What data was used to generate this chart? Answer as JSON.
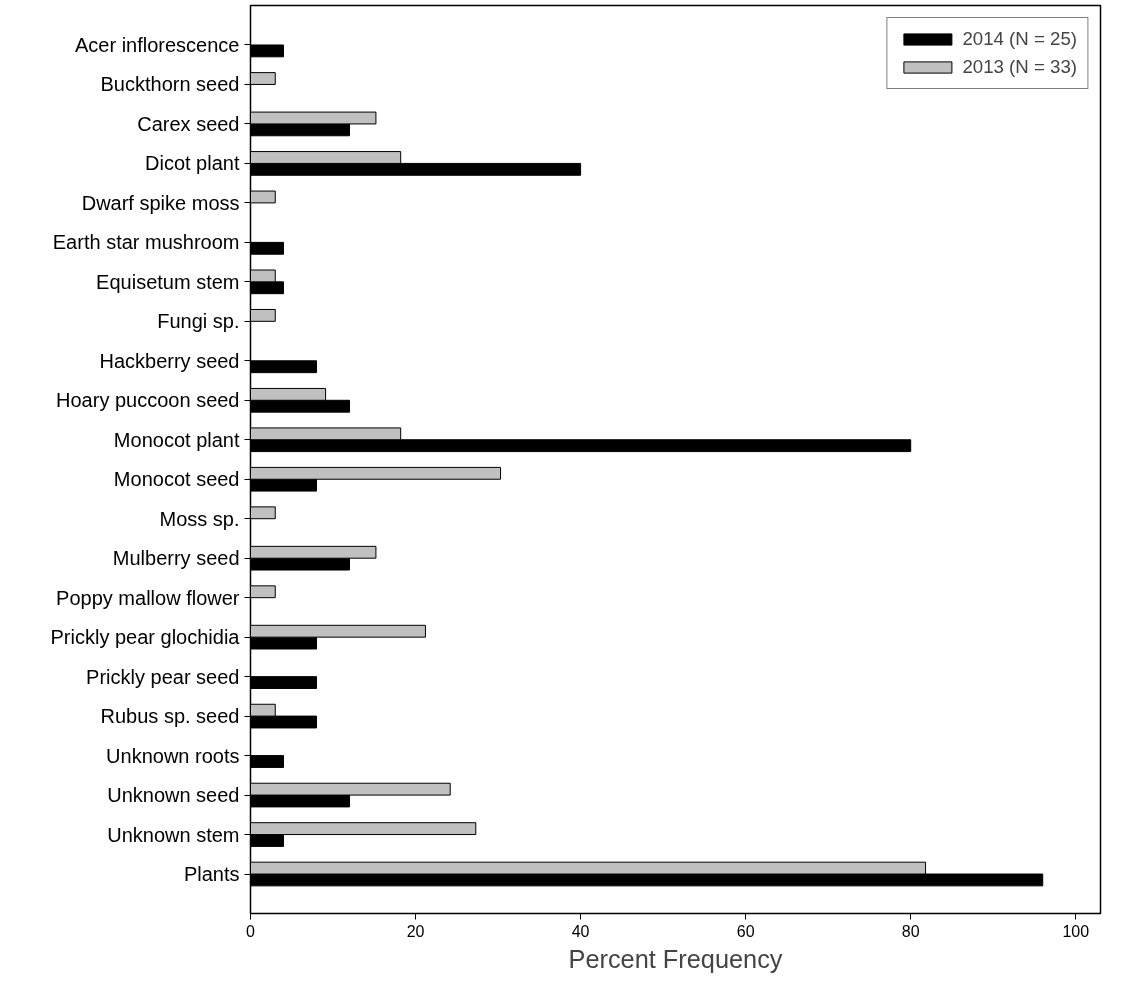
{
  "chart_data": {
    "type": "bar",
    "orientation": "horizontal",
    "xlabel": "Percent Frequency",
    "categories": [
      "Acer inflorescence",
      "Buckthorn seed",
      "Carex seed",
      "Dicot plant",
      "Dwarf spike moss",
      "Earth star mushroom",
      "Equisetum stem",
      "Fungi sp.",
      "Hackberry seed",
      "Hoary puccoon seed",
      "Monocot plant",
      "Monocot seed",
      "Moss sp.",
      "Mulberry seed",
      "Poppy mallow flower",
      "Prickly pear glochidia",
      "Prickly pear seed",
      "Rubus sp. seed",
      "Unknown roots",
      "Unknown seed",
      "Unknown stem",
      "Plants"
    ],
    "series": [
      {
        "name": "2014 (N = 25)",
        "color": "#000000",
        "values": [
          4,
          null,
          12,
          40,
          null,
          4,
          4,
          null,
          8,
          12,
          80,
          8,
          null,
          12,
          null,
          8,
          8,
          8,
          4,
          12,
          4,
          96
        ]
      },
      {
        "name": "2013 (N = 33)",
        "color": "#c0c0c0",
        "values": [
          null,
          3,
          15.2,
          18.2,
          3,
          null,
          3,
          3,
          null,
          9.1,
          18.2,
          30.3,
          3,
          15.2,
          3,
          21.2,
          null,
          3,
          null,
          24.2,
          27.3,
          81.8
        ]
      }
    ],
    "xlim": [
      0,
      103
    ],
    "xticks": [
      0,
      20,
      40,
      60,
      80,
      100
    ],
    "grid": false,
    "legend": "top right"
  }
}
